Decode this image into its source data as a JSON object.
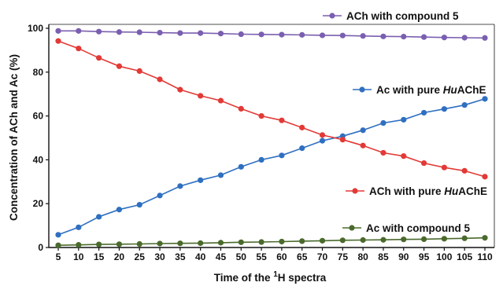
{
  "chart_data": {
    "type": "line",
    "title": "",
    "xlabel": {
      "main": "Time of the ",
      "sup": "1",
      "suffix": "H spectra"
    },
    "ylabel": "Concentration of ACh and Ac  (%)",
    "xlim": [
      5,
      110
    ],
    "ylim": [
      0,
      100
    ],
    "yticks": [
      "0",
      "20",
      "40",
      "60",
      "80",
      "100"
    ],
    "x": [
      5,
      10,
      15,
      20,
      25,
      30,
      35,
      40,
      45,
      50,
      55,
      60,
      65,
      70,
      75,
      80,
      85,
      90,
      95,
      100,
      105,
      110
    ],
    "xtick_labels": [
      "5",
      "10",
      "15",
      "20",
      "25",
      "30",
      "35",
      "40",
      "45",
      "50",
      "55",
      "60",
      "65",
      "70",
      "75",
      "80",
      "85",
      "90",
      "95",
      "100",
      "105",
      "110"
    ],
    "grid": false,
    "legend_placement": "inline labels beside each line",
    "series": [
      {
        "key": "ach-compound5",
        "name_parts": [
          "ACh with compound 5"
        ],
        "italic_index": -1,
        "color": "#7a5fb0",
        "values": [
          98.8,
          98.8,
          98.5,
          98.3,
          98.2,
          98.0,
          97.8,
          97.8,
          97.6,
          97.3,
          97.2,
          97.1,
          97.0,
          96.8,
          96.7,
          96.5,
          96.3,
          96.2,
          96.0,
          95.8,
          95.7,
          95.6
        ]
      },
      {
        "key": "ac-huache",
        "name_parts": [
          "Ac with pure ",
          "Hu",
          "AChE"
        ],
        "italic_index": 1,
        "color": "#2f6fc0",
        "values": [
          5.8,
          9.2,
          14.0,
          17.3,
          19.5,
          23.7,
          28.0,
          30.7,
          33.0,
          36.8,
          40.0,
          42.0,
          45.3,
          48.7,
          50.8,
          53.5,
          56.8,
          58.3,
          61.5,
          63.2,
          65.0,
          67.8
        ]
      },
      {
        "key": "ach-huache",
        "name_parts": [
          "ACh with pure ",
          "Hu",
          "AChE"
        ],
        "italic_index": 1,
        "color": "#e23a36",
        "values": [
          94.2,
          90.8,
          86.5,
          82.7,
          80.5,
          76.7,
          72.0,
          69.2,
          67.0,
          63.3,
          60.0,
          58.0,
          54.7,
          51.3,
          49.2,
          46.5,
          43.2,
          41.7,
          38.5,
          36.5,
          35.0,
          32.3
        ]
      },
      {
        "key": "ac-compound5",
        "name_parts": [
          "Ac with compound 5"
        ],
        "italic_index": -1,
        "color": "#4a6a2c",
        "values": [
          1.0,
          1.2,
          1.4,
          1.5,
          1.6,
          1.8,
          1.9,
          2.0,
          2.2,
          2.4,
          2.5,
          2.7,
          2.9,
          3.1,
          3.3,
          3.4,
          3.5,
          3.7,
          3.8,
          4.0,
          4.2,
          4.4
        ]
      }
    ]
  }
}
